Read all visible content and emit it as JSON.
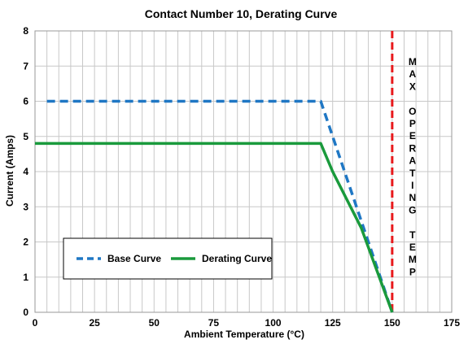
{
  "chart_data": {
    "type": "line",
    "title": "Contact Number 10, Derating Curve",
    "xlabel": "Ambient Temperature (°C)",
    "ylabel": "Current (Amps)",
    "xlim": [
      0,
      175
    ],
    "ylim": [
      0,
      8
    ],
    "x_ticks": [
      0,
      25,
      50,
      75,
      100,
      125,
      150,
      175
    ],
    "y_ticks": [
      0,
      1,
      2,
      3,
      4,
      5,
      6,
      7,
      8
    ],
    "x_minor_step": 5,
    "grid": true,
    "series": [
      {
        "name": "Base Curve",
        "color": "#1f77c4",
        "style": "dashed",
        "x": [
          5,
          120,
          150
        ],
        "y": [
          6,
          6,
          0
        ]
      },
      {
        "name": "Derating Curve",
        "color": "#1a9a3c",
        "style": "solid",
        "x": [
          0,
          120,
          125,
          137,
          150
        ],
        "y": [
          4.8,
          4.8,
          4.0,
          2.4,
          0
        ]
      }
    ],
    "reference_lines": [
      {
        "x": 150,
        "color": "#e8191c",
        "style": "dashed",
        "label_chars": [
          "M",
          "A",
          "X",
          "",
          "O",
          "P",
          "E",
          "R",
          "A",
          "T",
          "I",
          "N",
          "G",
          "",
          "T",
          "E",
          "M",
          "P"
        ]
      }
    ],
    "legend": {
      "placement": "bottom-left"
    }
  }
}
